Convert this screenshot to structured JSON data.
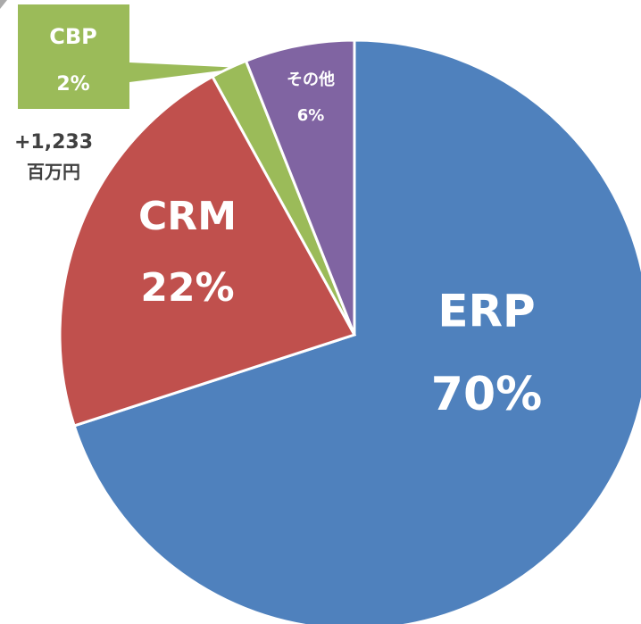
{
  "chart_data": {
    "type": "pie",
    "categories": [
      "ERP",
      "CRM",
      "CBP",
      "その他"
    ],
    "values": [
      70,
      22,
      2,
      6
    ],
    "value_labels": [
      "70%",
      "22%",
      "2%",
      "6%"
    ],
    "colors": [
      "#4f81bd",
      "#c0504d",
      "#9bbb59",
      "#8064a2"
    ],
    "annotation": [
      "+1,233",
      "百万円"
    ]
  }
}
